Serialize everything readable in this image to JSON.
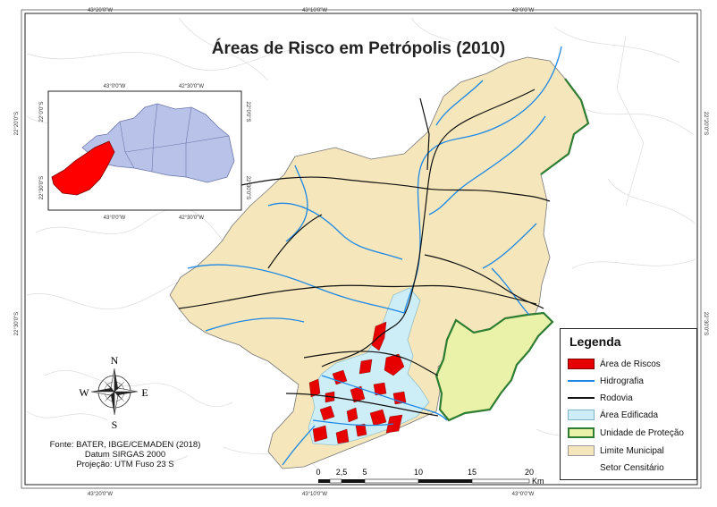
{
  "map": {
    "title": "Áreas de Risco em Petrópolis (2010)",
    "graticule": {
      "top": [
        "43°20'0\"W",
        "43°10'0\"W",
        "43°0'0\"W"
      ],
      "bottom": [
        "43°20'0\"W",
        "43°10'0\"W",
        "43°0'0\"W"
      ],
      "left": [
        "22°20'0\"S",
        "22°30'0\"S"
      ],
      "right": [
        "22°20'0\"S",
        "22°30'0\"S"
      ]
    },
    "inset": {
      "top": [
        "43°0'0\"W",
        "42°30'0\"W"
      ],
      "bottom": [
        "43°0'0\"W",
        "42°30'0\"W"
      ],
      "left": [
        "22°0'0\"S",
        "22°30'0\"S"
      ],
      "right": [
        "22°0'0\"S",
        "22°30'0\"S"
      ]
    },
    "compass": {
      "n": "N",
      "s": "S",
      "e": "E",
      "w": "W"
    },
    "scale_bar": {
      "ticks": [
        "0",
        "2,5",
        "5",
        "10",
        "15",
        "20"
      ],
      "unit": "Km"
    },
    "credits": {
      "source": "Fonte: BATER, IBGE/CEMADEN (2018)",
      "datum": "Datum SIRGAS 2000",
      "projection": "Projeção: UTM Fuso 23 S"
    },
    "colors": {
      "municipality": "#f5e7bb",
      "risk": "#e60000",
      "water": "#1e88e5",
      "road": "#111111",
      "built": "#cdeef7",
      "protection": "#e9f2a8",
      "protection_border": "#2e7d32",
      "inset_region": "#b9c3ea",
      "inset_highlight": "#ff0000"
    }
  },
  "legend": {
    "title": "Legenda",
    "items": [
      {
        "label": "Área de Riscos",
        "symbol": "risk-swatch"
      },
      {
        "label": "Hidrografia",
        "symbol": "water-line"
      },
      {
        "label": "Rodovia",
        "symbol": "road-line"
      },
      {
        "label": "Área Edificada",
        "symbol": "built-swatch"
      },
      {
        "label": "Unidade de Proteção",
        "symbol": "protection-swatch"
      },
      {
        "label": "Limite Municipal",
        "symbol": "municipal-swatch"
      },
      {
        "label": "Setor Censitário",
        "symbol": "census-swatch"
      }
    ]
  }
}
